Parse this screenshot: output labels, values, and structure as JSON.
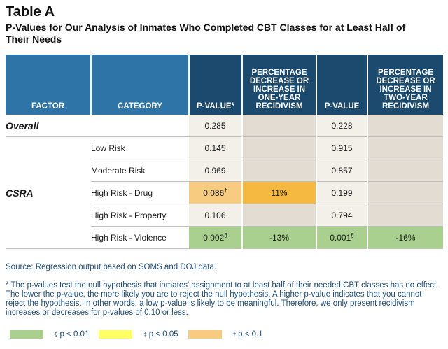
{
  "title": "Table A",
  "subtitle": "P-Values for Our Analysis of Inmates Who Completed CBT Classes for at Least Half of Their Needs",
  "table": {
    "headers": {
      "factor": "FACTOR",
      "category": "CATEGORY",
      "pvalue1": "P-VALUE*",
      "pct1": "PERCENTAGE DECREASE OR INCREASE IN ONE-YEAR RECIDIVISM",
      "pvalue2": "P-VALUE",
      "pct2": "PERCENTAGE DECREASE OR INCREASE IN TWO-YEAR RECIDIVISM"
    },
    "overall": {
      "factor": "Overall",
      "pvalue1": "0.285",
      "pct1": "",
      "pvalue2": "0.228",
      "pct2": ""
    },
    "csra_factor": "CSRA",
    "rows": [
      {
        "category": "Low Risk",
        "pvalue1": "0.145",
        "pvalue1_sup": "",
        "pct1": "",
        "pvalue2": "0.915",
        "pvalue2_sup": "",
        "pct2": ""
      },
      {
        "category": "Moderate Risk",
        "pvalue1": "0.969",
        "pvalue1_sup": "",
        "pct1": "",
        "pvalue2": "0.857",
        "pvalue2_sup": "",
        "pct2": ""
      },
      {
        "category": "High Risk - Drug",
        "pvalue1": "0.086",
        "pvalue1_sup": "†",
        "pct1": "11%",
        "pvalue2": "0.199",
        "pvalue2_sup": "",
        "pct2": ""
      },
      {
        "category": "High Risk - Property",
        "pvalue1": "0.106",
        "pvalue1_sup": "",
        "pct1": "",
        "pvalue2": "0.794",
        "pvalue2_sup": "",
        "pct2": ""
      },
      {
        "category": "High Risk - Violence",
        "pvalue1": "0.002",
        "pvalue1_sup": "§",
        "pct1": "-13%",
        "pvalue2": "0.001",
        "pvalue2_sup": "§",
        "pct2": "-16%"
      }
    ]
  },
  "source": "Source:  Regression output based on SOMS and DOJ data.",
  "note": "* The p-values test the null hypothesis that inmates' assignment to at least half of their needed CBT classes has no effect. The lower the p-value, the more likely you are to reject the null hypothesis. A higher p-value indicates that you cannot reject the hypothesis. In other words, a low p-value is likely to be meaningful. Therefore, we only present recidivism increases or decreases for p-values of 0.10 or less.",
  "legend": [
    {
      "symbol": "§",
      "label": "p < 0.01",
      "color": "#a9d08e"
    },
    {
      "symbol": "‡",
      "label": "p < 0.05",
      "color": "#ffff66"
    },
    {
      "symbol": "†",
      "label": "p < 0.1",
      "color": "#f7cc80"
    }
  ],
  "colors": {
    "header_blue": "#2f74a6",
    "header_navy": "#1b4a6e",
    "sig_green": "#a9d08e",
    "sig_orange": "#f7cc80",
    "sig_dark_orange": "#f5b942",
    "text_blue": "#1f4e79"
  }
}
